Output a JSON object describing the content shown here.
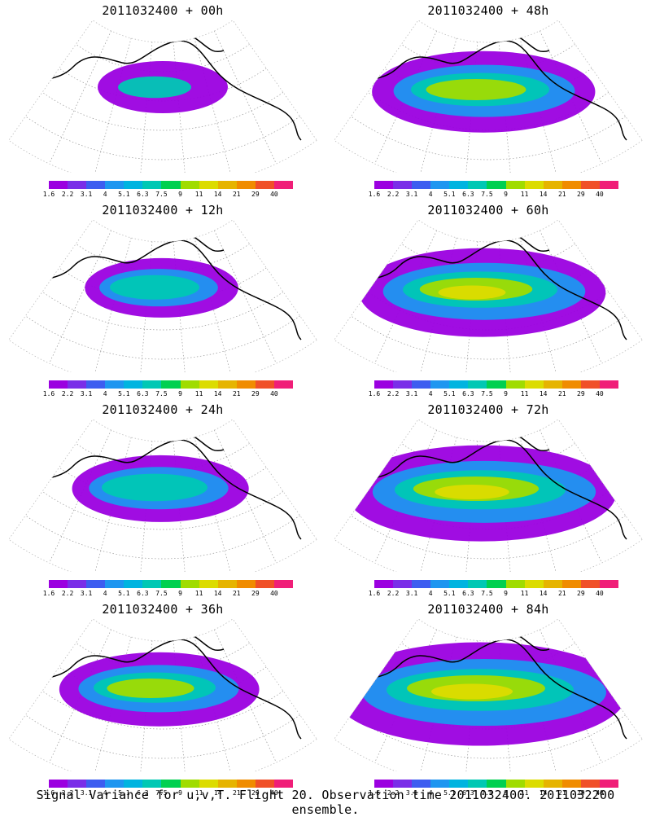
{
  "colorbar": {
    "labels": [
      "1.6",
      "2.2",
      "3.1",
      "4",
      "5.1",
      "6.3",
      "7.5",
      "9",
      "11",
      "14",
      "21",
      "29",
      "40"
    ],
    "colors": [
      "#9b00e0",
      "#7a2ee8",
      "#3d5df0",
      "#1e96f0",
      "#00b4e0",
      "#00c8b4",
      "#00d050",
      "#a0dc00",
      "#dcdc00",
      "#e6b400",
      "#f08c00",
      "#f05028",
      "#f01e78"
    ]
  },
  "panels": [
    {
      "title": "2011032400 + 00h",
      "lead": 0
    },
    {
      "title": "2011032400 + 48h",
      "lead": 48
    },
    {
      "title": "2011032400 + 12h",
      "lead": 12
    },
    {
      "title": "2011032400 + 60h",
      "lead": 60
    },
    {
      "title": "2011032400 + 24h",
      "lead": 24
    },
    {
      "title": "2011032400 + 72h",
      "lead": 72
    },
    {
      "title": "2011032400 + 36h",
      "lead": 36
    },
    {
      "title": "2011032400 + 84h",
      "lead": 84
    }
  ],
  "footer": "Signal Variance for u,v,T. Flight 20. Observation time 2011032400. 2011032200 ensemble."
}
